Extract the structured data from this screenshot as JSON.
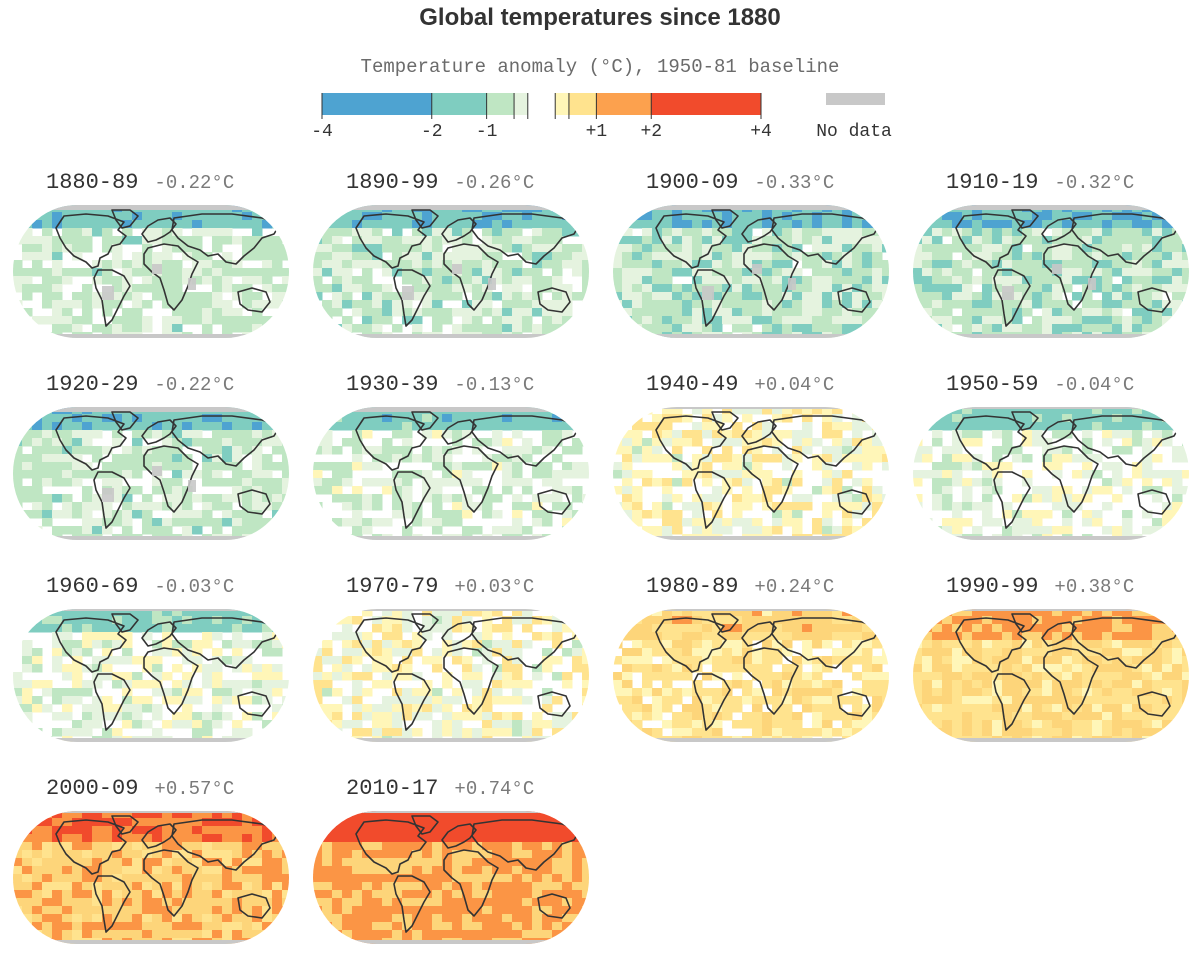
{
  "title": "Global temperatures since 1880",
  "legend": {
    "title": "Temperature anomaly (°C), 1950-81 baseline",
    "ticks": [
      "-4",
      "-2",
      "-1",
      "+1",
      "+2",
      "+4"
    ],
    "no_data_label": "No data",
    "colors": {
      "c_m4": "#4ea3d1",
      "c_m2": "#7fcdc0",
      "c_m1": "#bfe6c3",
      "c_m05": "#e5f3df",
      "c_0": "#ffffff",
      "c_p05": "#fff6b8",
      "c_p1": "#fdd57a",
      "c_p2": "#fb9545",
      "c_p4": "#f14b2c",
      "no_data": "#c8c8c8",
      "land": "#333333"
    }
  },
  "chart_data": {
    "type": "heatmap",
    "title": "Global temperatures since 1880",
    "subtitle": "Temperature anomaly (°C), 1950-81 baseline",
    "color_scale_stops": [
      -4,
      -2,
      -1,
      1,
      2,
      4
    ],
    "panels": [
      {
        "decade": "1880-89",
        "anomaly_label": "-0.22°C",
        "anomaly": -0.22
      },
      {
        "decade": "1890-99",
        "anomaly_label": "-0.26°C",
        "anomaly": -0.26
      },
      {
        "decade": "1900-09",
        "anomaly_label": "-0.33°C",
        "anomaly": -0.33
      },
      {
        "decade": "1910-19",
        "anomaly_label": "-0.32°C",
        "anomaly": -0.32
      },
      {
        "decade": "1920-29",
        "anomaly_label": "-0.22°C",
        "anomaly": -0.22
      },
      {
        "decade": "1930-39",
        "anomaly_label": "-0.13°C",
        "anomaly": -0.13
      },
      {
        "decade": "1940-49",
        "anomaly_label": "+0.04°C",
        "anomaly": 0.04
      },
      {
        "decade": "1950-59",
        "anomaly_label": "-0.04°C",
        "anomaly": -0.04
      },
      {
        "decade": "1960-69",
        "anomaly_label": "-0.03°C",
        "anomaly": -0.03
      },
      {
        "decade": "1970-79",
        "anomaly_label": "+0.03°C",
        "anomaly": 0.03
      },
      {
        "decade": "1980-89",
        "anomaly_label": "+0.24°C",
        "anomaly": 0.24
      },
      {
        "decade": "1990-99",
        "anomaly_label": "+0.38°C",
        "anomaly": 0.38
      },
      {
        "decade": "2000-09",
        "anomaly_label": "+0.57°C",
        "anomaly": 0.57
      },
      {
        "decade": "2010-17",
        "anomaly_label": "+0.74°C",
        "anomaly": 0.74
      }
    ]
  }
}
